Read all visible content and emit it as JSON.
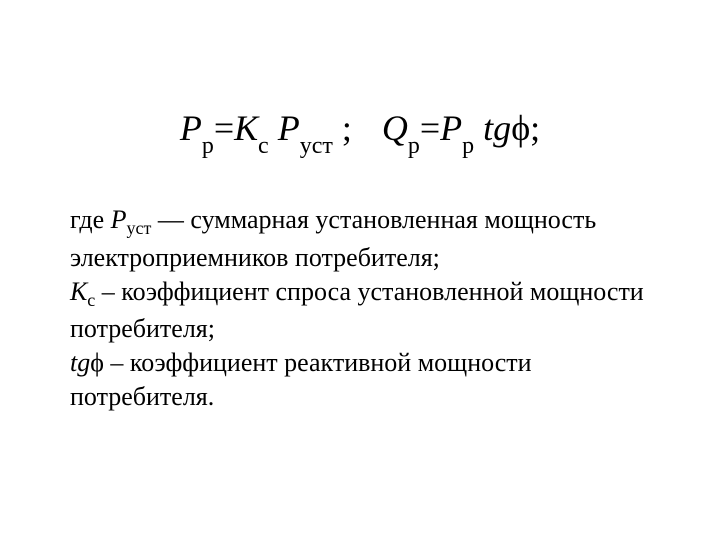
{
  "formula": {
    "P_var": "Р",
    "P_sub1": "р",
    "eq1": "=",
    "K_var": "К",
    "K_sub": "с",
    "space1": " ",
    "P_var2": "Р",
    "P_sub2": "уст",
    "semi1": " ;",
    "Q_var": "Q",
    "Q_sub": "р",
    "eq2": "=",
    "P_var3": "Р",
    "P_sub3": "р",
    "tg": " tg",
    "phi": "ϕ",
    "semi2": ";"
  },
  "desc": {
    "line1_prefix": " где ",
    "line1_Pvar": "Р",
    "line1_Psub": "уст",
    "line1_rest": " — суммарная установленная мощность электроприемников потребителя;",
    "line2_Kvar": "К",
    "line2_Ksub": "с",
    "line2_rest": " – коэффициент спроса установленной мощности потребителя;",
    "line3_tg": "tg",
    "line3_phi": "ϕ",
    "line3_rest": " – коэффициент реактивной мощности потребителя."
  },
  "styling": {
    "background_color": "#ffffff",
    "text_color": "#000000",
    "formula_fontsize": 36,
    "desc_fontsize": 26,
    "font_family": "Times New Roman"
  }
}
